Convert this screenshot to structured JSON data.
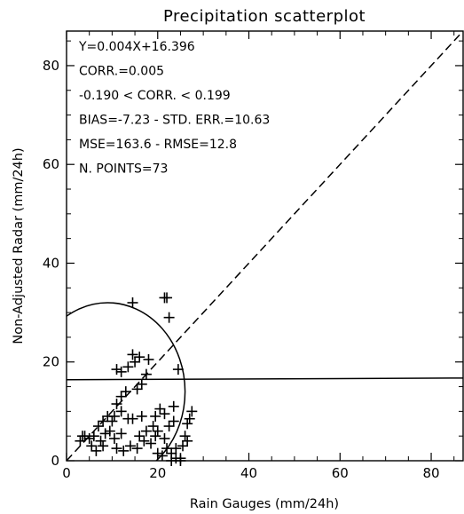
{
  "chart_data": {
    "type": "scatter",
    "title": "Precipitation scatterplot",
    "xlabel": "Rain Gauges (mm/24h)",
    "ylabel": "Non-Adjusted Radar (mm/24h)",
    "xlim": [
      0,
      87
    ],
    "ylim": [
      0,
      87
    ],
    "x_ticks": [
      0,
      20,
      40,
      60,
      80
    ],
    "y_ticks": [
      0,
      20,
      40,
      60,
      80
    ],
    "grid": false,
    "legend": "none",
    "marker_color": "#000000",
    "stats": [
      "Y=0.004X+16.396",
      "CORR.=0.005",
      "-0.190 < CORR. < 0.199",
      "BIAS=-7.23 - STD. ERR.=10.63",
      "MSE=163.6 - RMSE=12.8",
      "N. POINTS=73"
    ],
    "regression": {
      "slope": 0.004,
      "intercept": 16.396
    },
    "identity_line": {
      "style": "dashed",
      "from": [
        0,
        0
      ],
      "to": [
        87,
        87
      ]
    },
    "ellipse": {
      "center": [
        9,
        14
      ],
      "rx": 17,
      "ry": 18
    },
    "points": [
      [
        14.5,
        32
      ],
      [
        21.5,
        33
      ],
      [
        22,
        33
      ],
      [
        22.5,
        29
      ],
      [
        18,
        20.5
      ],
      [
        16,
        21
      ],
      [
        14.5,
        21.5
      ],
      [
        15,
        20
      ],
      [
        13.5,
        19
      ],
      [
        12,
        18
      ],
      [
        11,
        18.5
      ],
      [
        24.5,
        18.5
      ],
      [
        17.5,
        17.5
      ],
      [
        16.5,
        15.5
      ],
      [
        15.5,
        14.5
      ],
      [
        13,
        14
      ],
      [
        12,
        13
      ],
      [
        11,
        11.5
      ],
      [
        23.5,
        11
      ],
      [
        20.5,
        10.5
      ],
      [
        21.5,
        9.5
      ],
      [
        19.5,
        9
      ],
      [
        16.5,
        9
      ],
      [
        14.5,
        8.5
      ],
      [
        13.5,
        8.5
      ],
      [
        12,
        10
      ],
      [
        10.5,
        9
      ],
      [
        10,
        8
      ],
      [
        9,
        9
      ],
      [
        8,
        8
      ],
      [
        7,
        7
      ],
      [
        9.5,
        6
      ],
      [
        8.5,
        5.5
      ],
      [
        6,
        5
      ],
      [
        5,
        4.5
      ],
      [
        4,
        5
      ],
      [
        3,
        4
      ],
      [
        3.5,
        5
      ],
      [
        5.5,
        3
      ],
      [
        6.5,
        2
      ],
      [
        8,
        3
      ],
      [
        11,
        2.5
      ],
      [
        12.5,
        2
      ],
      [
        14,
        3
      ],
      [
        15.5,
        2.5
      ],
      [
        17,
        4
      ],
      [
        18.5,
        3.5
      ],
      [
        19.5,
        5
      ],
      [
        19,
        7
      ],
      [
        20,
        6
      ],
      [
        17.5,
        6
      ],
      [
        16,
        5
      ],
      [
        12,
        5.5
      ],
      [
        10.5,
        4.5
      ],
      [
        7.5,
        4
      ],
      [
        21.5,
        4.5
      ],
      [
        22,
        2.5
      ],
      [
        23,
        1.5
      ],
      [
        24,
        0.5
      ],
      [
        25,
        0.5
      ],
      [
        24,
        2.5
      ],
      [
        25.5,
        3
      ],
      [
        26,
        5
      ],
      [
        26.5,
        7.5
      ],
      [
        27,
        8.5
      ],
      [
        27.5,
        10
      ],
      [
        26.5,
        4
      ],
      [
        22.5,
        7
      ],
      [
        23.5,
        8
      ],
      [
        20,
        1.5
      ],
      [
        21,
        1
      ],
      [
        23,
        0
      ],
      [
        25,
        0
      ]
    ]
  }
}
